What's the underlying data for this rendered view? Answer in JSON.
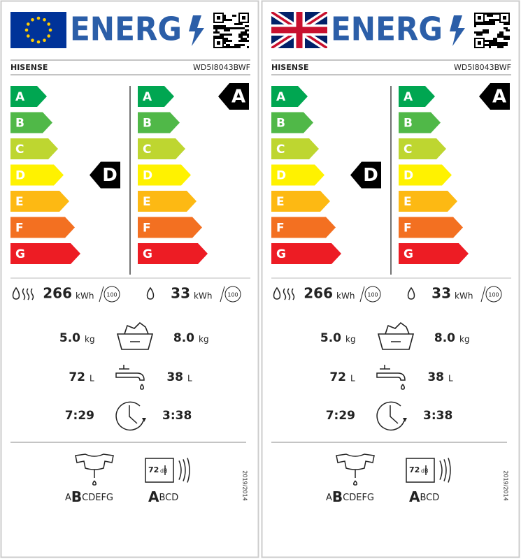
{
  "labels": [
    {
      "title": "ENERG",
      "brand": "HISENSE",
      "model": "WD5I8043BWF",
      "scale": [
        "A",
        "B",
        "C",
        "D",
        "E",
        "F",
        "G"
      ],
      "washdry_class": "D",
      "wash_class": "A",
      "washdry_energy": "266",
      "wash_energy": "33",
      "energy_unit": "kWh",
      "cycles": "100",
      "washdry_capacity": "5.0",
      "wash_capacity": "8.0",
      "capacity_unit": "kg",
      "washdry_water": "72",
      "wash_water": "38",
      "water_unit": "L",
      "washdry_time": "7:29",
      "wash_time": "3:38",
      "spin_class": [
        "A",
        "B",
        "CDEFG"
      ],
      "noise": "72",
      "noise_unit": "dB",
      "noise_class": [
        "A",
        "BCD"
      ],
      "regulation": "2019/2014"
    },
    {
      "title": "ENERG",
      "brand": "HISENSE",
      "model": "WD5I8043BWF",
      "scale": [
        "A",
        "B",
        "C",
        "D",
        "E",
        "F",
        "G"
      ],
      "washdry_class": "D",
      "wash_class": "A",
      "washdry_energy": "266",
      "wash_energy": "33",
      "energy_unit": "kWh",
      "cycles": "100",
      "washdry_capacity": "5.0",
      "wash_capacity": "8.0",
      "capacity_unit": "kg",
      "washdry_water": "72",
      "wash_water": "38",
      "water_unit": "L",
      "washdry_time": "7:29",
      "wash_time": "3:38",
      "spin_class": [
        "A",
        "B",
        "CDEFG"
      ],
      "noise": "72",
      "noise_unit": "dB",
      "noise_class": [
        "A",
        "BCD"
      ],
      "regulation": "2019/2014"
    }
  ]
}
